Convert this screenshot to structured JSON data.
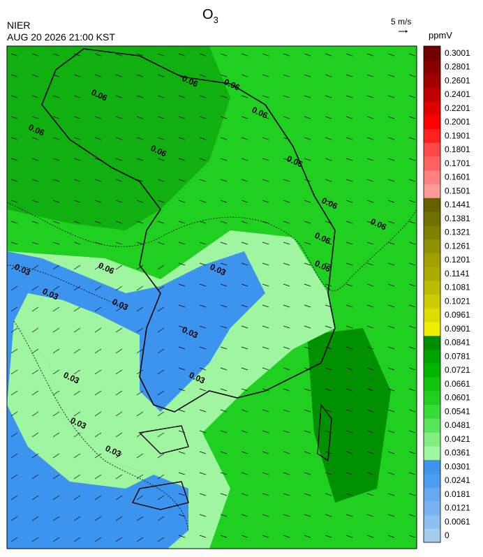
{
  "header": {
    "org": "NIER",
    "datetime": "AUG 20 2026 21:00 KST",
    "title": "O",
    "title_sub": "3"
  },
  "wind_scale": "5 m/s",
  "colorbar": {
    "unit": "ppmV",
    "labels": [
      "0",
      "0.0061",
      "0.0121",
      "0.0181",
      "0.0241",
      "0.0301",
      "0.0361",
      "0.0421",
      "0.0481",
      "0.0541",
      "0.0601",
      "0.0661",
      "0.0721",
      "0.0781",
      "0.0841",
      "0.0901",
      "0.0961",
      "0.1021",
      "0.1081",
      "0.1141",
      "0.1201",
      "0.1261",
      "0.1321",
      "0.1381",
      "0.1441",
      "0.1501",
      "0.1601",
      "0.1701",
      "0.1801",
      "0.1901",
      "0.2001",
      "0.2201",
      "0.2401",
      "0.2601",
      "0.2801",
      "0.3001"
    ],
    "colors": [
      "#a6cdee",
      "#8cc0f0",
      "#78b4f0",
      "#64a8f0",
      "#4c9cf0",
      "#3c94ee",
      "#a0f5a0",
      "#80ee80",
      "#58e458",
      "#38dc38",
      "#20d020",
      "#10c410",
      "#00b400",
      "#00a400",
      "#008c00",
      "#eeee00",
      "#dcdc00",
      "#cccc00",
      "#bcbc00",
      "#acac00",
      "#a0a000",
      "#909000",
      "#808000",
      "#707000",
      "#666000",
      "#ff9a9a",
      "#ff8080",
      "#ff6060",
      "#ff4848",
      "#ff2020",
      "#ff0000",
      "#e00000",
      "#c00000",
      "#a00000",
      "#880000",
      "#700000"
    ]
  },
  "contour_labels": [
    "0.06",
    "0.06",
    "0.06",
    "0.06",
    "0.06",
    "0.06",
    "0.06",
    "0.06",
    "0.06",
    "0.06",
    "0.06",
    "0.06",
    "0.03",
    "0.03",
    "0.03",
    "0.03",
    "0.03",
    "0.03",
    "0.03",
    "0.03",
    "0.03"
  ]
}
